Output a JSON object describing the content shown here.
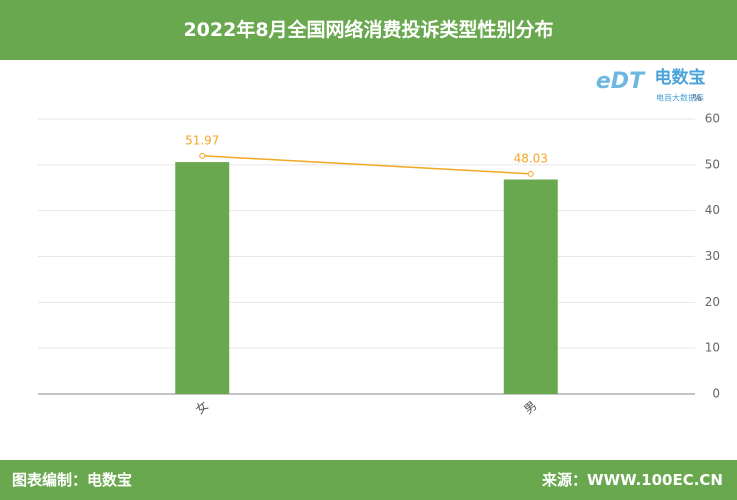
{
  "header": {
    "title": "2022年8月全国网络消费投诉类型性别分布"
  },
  "logo": {
    "mark": "eDT",
    "name": "电数宝",
    "tagline": "电商大数据库"
  },
  "footer": {
    "left": "图表编制：电数宝",
    "right": "来源：WWW.100EC.CN"
  },
  "chart_data": {
    "type": "bar",
    "categories": [
      "女",
      "男"
    ],
    "series": [
      {
        "type": "bar",
        "color": "#6aa84f",
        "values": [
          50.6,
          46.8
        ]
      },
      {
        "type": "line",
        "color": "#f5a623",
        "values": [
          51.97,
          48.03
        ]
      }
    ],
    "y_unit": "%",
    "ylim": [
      0,
      60
    ],
    "yticks": [
      0,
      10,
      20,
      30,
      40,
      50,
      60
    ],
    "grid": true
  }
}
